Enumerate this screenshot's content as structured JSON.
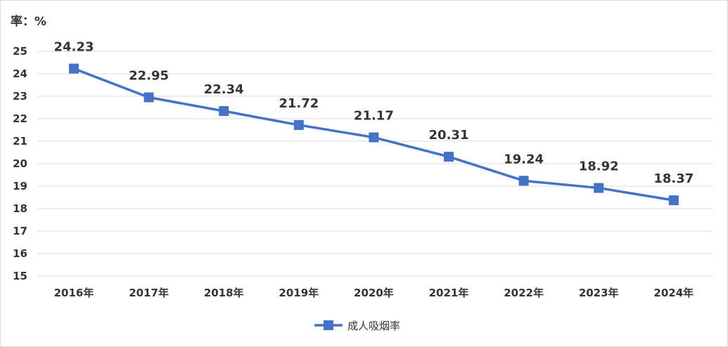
{
  "chart_data": {
    "type": "line",
    "ylabel": "率：%",
    "categories": [
      "2016年",
      "2017年",
      "2018年",
      "2019年",
      "2020年",
      "2021年",
      "2022年",
      "2023年",
      "2024年"
    ],
    "series": [
      {
        "name": "成人吸烟率",
        "values": [
          24.23,
          22.95,
          22.34,
          21.72,
          21.17,
          20.31,
          19.24,
          18.92,
          18.37
        ],
        "labels": [
          "24.23",
          "22.95",
          "22.34",
          "21.72",
          "21.17",
          "20.31",
          "19.24",
          "18.92",
          "18.37"
        ],
        "color": "#4472c4"
      }
    ],
    "ylim": [
      15,
      25
    ],
    "yticks": [
      "15",
      "16",
      "17",
      "18",
      "19",
      "20",
      "21",
      "22",
      "23",
      "24",
      "25"
    ],
    "grid": true,
    "legend_position": "bottom",
    "gridColor": "#d9d9d9"
  }
}
